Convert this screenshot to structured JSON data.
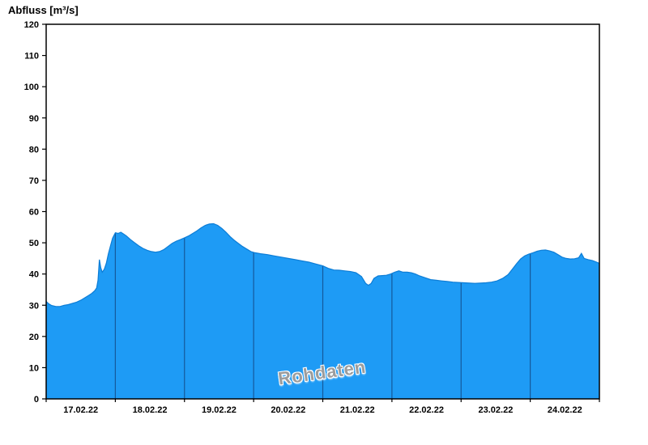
{
  "chart_data": {
    "type": "area",
    "title": "Abfluss [m³/s]",
    "ylabel": "Abfluss [m³/s]",
    "watermark": "Rohdaten",
    "ylim": [
      0,
      120
    ],
    "ytick_step": 10,
    "x_day_labels": [
      "17.02.22",
      "18.02.22",
      "19.02.22",
      "20.02.22",
      "21.02.22",
      "22.02.22",
      "23.02.22",
      "24.02.22"
    ],
    "grid": false,
    "legend": "none",
    "colors": {
      "fill": "#1e9bf5",
      "line": "#0d7dd6",
      "day_separator": "#15599b",
      "axis": "#000000",
      "watermark": "#9c9c9c"
    },
    "series": [
      {
        "name": "Abfluss Rohdaten",
        "unit": "m³/s",
        "points": [
          [
            0.0,
            31.2
          ],
          [
            0.04,
            30.4
          ],
          [
            0.08,
            29.9
          ],
          [
            0.14,
            29.6
          ],
          [
            0.2,
            29.6
          ],
          [
            0.26,
            30.0
          ],
          [
            0.32,
            30.2
          ],
          [
            0.38,
            30.6
          ],
          [
            0.44,
            31.0
          ],
          [
            0.5,
            31.6
          ],
          [
            0.56,
            32.4
          ],
          [
            0.62,
            33.2
          ],
          [
            0.66,
            33.8
          ],
          [
            0.7,
            34.6
          ],
          [
            0.73,
            35.5
          ],
          [
            0.75,
            38.0
          ],
          [
            0.77,
            44.6
          ],
          [
            0.79,
            42.0
          ],
          [
            0.81,
            40.6
          ],
          [
            0.84,
            41.5
          ],
          [
            0.87,
            43.5
          ],
          [
            0.9,
            46.5
          ],
          [
            0.93,
            49.0
          ],
          [
            0.96,
            51.5
          ],
          [
            1.0,
            53.2
          ],
          [
            1.04,
            53.0
          ],
          [
            1.08,
            53.4
          ],
          [
            1.12,
            52.8
          ],
          [
            1.16,
            52.2
          ],
          [
            1.22,
            51.0
          ],
          [
            1.28,
            50.0
          ],
          [
            1.34,
            49.0
          ],
          [
            1.4,
            48.2
          ],
          [
            1.46,
            47.6
          ],
          [
            1.52,
            47.2
          ],
          [
            1.58,
            47.0
          ],
          [
            1.64,
            47.2
          ],
          [
            1.7,
            47.8
          ],
          [
            1.76,
            48.8
          ],
          [
            1.82,
            49.8
          ],
          [
            1.88,
            50.5
          ],
          [
            1.94,
            51.0
          ],
          [
            2.0,
            51.6
          ],
          [
            2.06,
            52.2
          ],
          [
            2.12,
            53.0
          ],
          [
            2.18,
            53.8
          ],
          [
            2.24,
            54.8
          ],
          [
            2.3,
            55.6
          ],
          [
            2.36,
            56.0
          ],
          [
            2.42,
            56.1
          ],
          [
            2.48,
            55.6
          ],
          [
            2.54,
            54.6
          ],
          [
            2.6,
            53.4
          ],
          [
            2.66,
            52.0
          ],
          [
            2.72,
            50.8
          ],
          [
            2.78,
            49.8
          ],
          [
            2.84,
            48.8
          ],
          [
            2.9,
            48.0
          ],
          [
            2.96,
            47.2
          ],
          [
            3.02,
            46.8
          ],
          [
            3.1,
            46.5
          ],
          [
            3.2,
            46.2
          ],
          [
            3.3,
            45.8
          ],
          [
            3.4,
            45.4
          ],
          [
            3.5,
            45.0
          ],
          [
            3.6,
            44.6
          ],
          [
            3.7,
            44.2
          ],
          [
            3.8,
            43.8
          ],
          [
            3.9,
            43.2
          ],
          [
            4.0,
            42.6
          ],
          [
            4.08,
            41.8
          ],
          [
            4.16,
            41.3
          ],
          [
            4.24,
            41.2
          ],
          [
            4.32,
            41.0
          ],
          [
            4.4,
            40.8
          ],
          [
            4.48,
            40.4
          ],
          [
            4.56,
            39.2
          ],
          [
            4.62,
            37.0
          ],
          [
            4.66,
            36.4
          ],
          [
            4.7,
            37.0
          ],
          [
            4.74,
            38.6
          ],
          [
            4.8,
            39.4
          ],
          [
            4.86,
            39.5
          ],
          [
            4.92,
            39.6
          ],
          [
            4.98,
            40.0
          ],
          [
            5.04,
            40.6
          ],
          [
            5.1,
            41.0
          ],
          [
            5.16,
            40.6
          ],
          [
            5.22,
            40.6
          ],
          [
            5.28,
            40.4
          ],
          [
            5.34,
            40.0
          ],
          [
            5.4,
            39.4
          ],
          [
            5.48,
            38.8
          ],
          [
            5.56,
            38.2
          ],
          [
            5.64,
            38.0
          ],
          [
            5.72,
            37.8
          ],
          [
            5.8,
            37.6
          ],
          [
            5.88,
            37.4
          ],
          [
            5.96,
            37.3
          ],
          [
            6.04,
            37.2
          ],
          [
            6.12,
            37.1
          ],
          [
            6.2,
            37.0
          ],
          [
            6.28,
            37.1
          ],
          [
            6.36,
            37.2
          ],
          [
            6.44,
            37.4
          ],
          [
            6.52,
            37.8
          ],
          [
            6.6,
            38.6
          ],
          [
            6.68,
            39.8
          ],
          [
            6.74,
            41.5
          ],
          [
            6.8,
            43.2
          ],
          [
            6.86,
            44.8
          ],
          [
            6.92,
            45.8
          ],
          [
            6.98,
            46.4
          ],
          [
            7.04,
            46.8
          ],
          [
            7.1,
            47.3
          ],
          [
            7.16,
            47.6
          ],
          [
            7.22,
            47.7
          ],
          [
            7.28,
            47.4
          ],
          [
            7.34,
            47.0
          ],
          [
            7.4,
            46.2
          ],
          [
            7.46,
            45.4
          ],
          [
            7.52,
            45.0
          ],
          [
            7.58,
            44.8
          ],
          [
            7.64,
            44.9
          ],
          [
            7.7,
            45.2
          ],
          [
            7.74,
            46.6
          ],
          [
            7.78,
            45.0
          ],
          [
            7.84,
            44.6
          ],
          [
            7.9,
            44.3
          ],
          [
            7.96,
            43.8
          ],
          [
            8.0,
            43.4
          ]
        ]
      }
    ]
  }
}
